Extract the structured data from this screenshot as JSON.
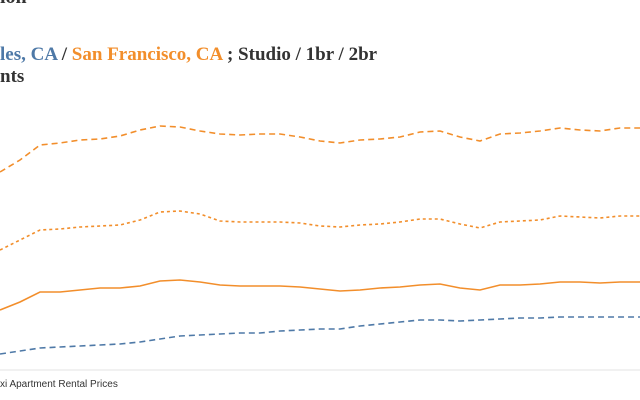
{
  "chart_data": {
    "type": "line",
    "title": "ion",
    "subtitle": [
      {
        "text": "les, CA",
        "color": "#4e79a7"
      },
      {
        "text": " / ",
        "color": "#333333"
      },
      {
        "text": "San Francisco, CA",
        "color": "#f28e2b"
      },
      {
        "text": " ; Studio / 1br / 2br",
        "color": "#333333"
      }
    ],
    "subtitle_line2": "nts",
    "source": "xi Apartment Rental Prices",
    "ylim": [
      0,
      400
    ],
    "series": [
      {
        "color": "#f28e2b",
        "dash": "dashed",
        "values": [
          228,
          240,
          255,
          257,
          260,
          261,
          264,
          270,
          274,
          273,
          269,
          266,
          265,
          266,
          266,
          263,
          259,
          257,
          260,
          261,
          263,
          268,
          269,
          263,
          259,
          266,
          267,
          269,
          272,
          270,
          269,
          272,
          272
        ]
      },
      {
        "color": "#f28e2b",
        "dash": "dotted",
        "values": [
          150,
          160,
          170,
          171,
          173,
          174,
          175,
          180,
          188,
          189,
          186,
          179,
          178,
          178,
          178,
          177,
          174,
          173,
          175,
          176,
          178,
          181,
          181,
          176,
          172,
          178,
          179,
          180,
          184,
          183,
          182,
          184,
          184
        ]
      },
      {
        "color": "#f28e2b",
        "dash": "solid",
        "values": [
          90,
          98,
          108,
          108,
          110,
          112,
          112,
          114,
          119,
          120,
          118,
          115,
          114,
          114,
          114,
          113,
          111,
          109,
          110,
          112,
          113,
          115,
          116,
          112,
          110,
          115,
          115,
          116,
          118,
          118,
          117,
          118,
          118
        ]
      },
      {
        "color": "#4e79a7",
        "dash": "dashed",
        "values": [
          46,
          49,
          52,
          53,
          54,
          55,
          56,
          58,
          61,
          64,
          65,
          66,
          67,
          67,
          69,
          70,
          71,
          71,
          74,
          76,
          78,
          80,
          80,
          79,
          80,
          81,
          82,
          82,
          83,
          83,
          83,
          83,
          83
        ]
      }
    ]
  }
}
